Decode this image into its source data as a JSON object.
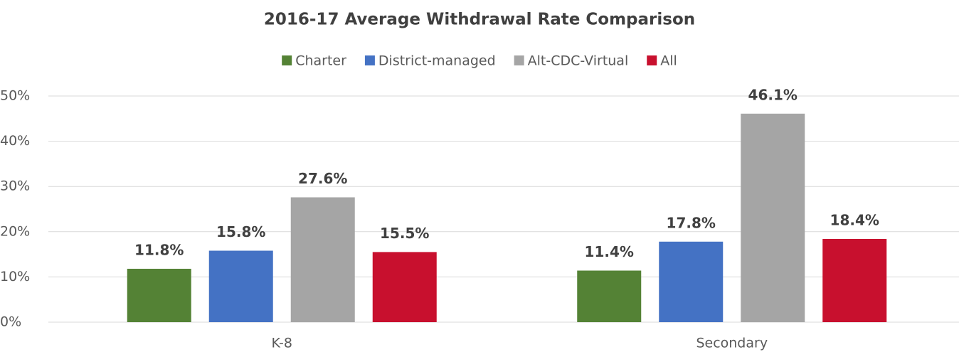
{
  "chart_data": {
    "type": "bar",
    "title": "2016-17 Average Withdrawal Rate Comparison",
    "categories": [
      "K-8",
      "Secondary"
    ],
    "series": [
      {
        "name": "Charter",
        "color": "#548235",
        "values": [
          11.8,
          11.4
        ],
        "value_labels": [
          "11.8%",
          "11.4%"
        ]
      },
      {
        "name": "District-managed",
        "color": "#4472c4",
        "values": [
          15.8,
          17.8
        ],
        "value_labels": [
          "15.8%",
          "17.8%"
        ]
      },
      {
        "name": "Alt-CDC-Virtual",
        "color": "#a5a5a5",
        "values": [
          27.6,
          46.1
        ],
        "value_labels": [
          "27.6%",
          "46.1%"
        ]
      },
      {
        "name": "All",
        "color": "#c8102e",
        "values": [
          15.5,
          18.4
        ],
        "value_labels": [
          "15.5%",
          "18.4%"
        ]
      }
    ],
    "ylim": [
      0,
      50
    ],
    "yticks": [
      {
        "value": 0,
        "label": "0%"
      },
      {
        "value": 10,
        "label": "10%"
      },
      {
        "value": 20,
        "label": "20%"
      },
      {
        "value": 30,
        "label": "30%"
      },
      {
        "value": 40,
        "label": "40%"
      },
      {
        "value": 50,
        "label": "50%"
      }
    ],
    "grid": true,
    "legend": "top"
  }
}
